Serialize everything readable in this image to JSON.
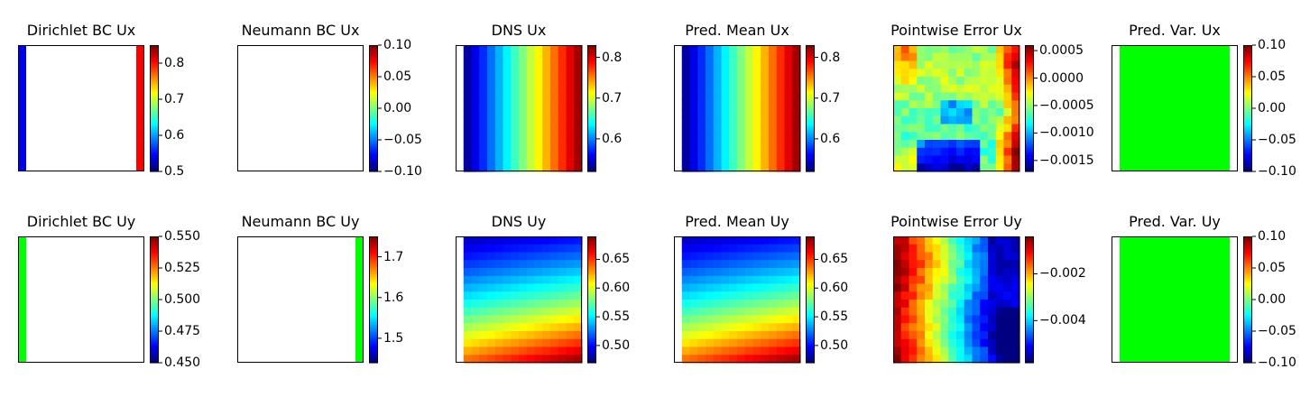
{
  "chart_data": [
    {
      "type": "heatmap",
      "title": "Dirichlet BC Ux",
      "pattern": "edges",
      "left_color": "#0000e8",
      "right_color": "#ff0000",
      "colorbar": {
        "ticks": [
          "0.5",
          "0.6",
          "0.7",
          "0.8"
        ],
        "tick_values": [
          0.5,
          0.6,
          0.7,
          0.8
        ],
        "range": [
          0.5,
          0.85
        ]
      }
    },
    {
      "type": "heatmap",
      "title": "Neumann BC Ux",
      "pattern": "blank",
      "colorbar": {
        "ticks": [
          "0.10",
          "0.05",
          "0.00",
          "−0.05",
          "−0.10"
        ],
        "tick_values": [
          0.1,
          0.05,
          0.0,
          -0.05,
          -0.1
        ],
        "range": [
          -0.1,
          0.1
        ]
      }
    },
    {
      "type": "heatmap",
      "title": "DNS Ux",
      "pattern": "gradx",
      "value_range": [
        0.52,
        0.83
      ],
      "colorbar": {
        "ticks": [
          "0.8",
          "0.7",
          "0.6"
        ],
        "tick_values": [
          0.8,
          0.7,
          0.6
        ],
        "range": [
          0.52,
          0.83
        ]
      }
    },
    {
      "type": "heatmap",
      "title": "Pred. Mean Ux",
      "pattern": "gradx",
      "value_range": [
        0.52,
        0.83
      ],
      "colorbar": {
        "ticks": [
          "0.8",
          "0.7",
          "0.6"
        ],
        "tick_values": [
          0.8,
          0.7,
          0.6
        ],
        "range": [
          0.52,
          0.83
        ]
      }
    },
    {
      "type": "heatmap",
      "title": "Pointwise Error Ux",
      "pattern": "errorux",
      "colorbar": {
        "ticks": [
          "0.0005",
          "0.0000",
          "−0.0005",
          "−0.0010",
          "−0.0015"
        ],
        "tick_values": [
          0.0005,
          0.0,
          -0.0005,
          -0.001,
          -0.0015
        ],
        "range": [
          -0.0017,
          0.0006
        ]
      }
    },
    {
      "type": "heatmap",
      "title": "Pred. Var. Ux",
      "pattern": "flat",
      "fill_color": "#00ff00",
      "colorbar": {
        "ticks": [
          "0.10",
          "0.05",
          "0.00",
          "−0.05",
          "−0.10"
        ],
        "tick_values": [
          0.1,
          0.05,
          0.0,
          -0.05,
          -0.1
        ],
        "range": [
          -0.1,
          0.1
        ]
      }
    },
    {
      "type": "heatmap",
      "title": "Dirichlet BC Uy",
      "pattern": "leftedge",
      "left_color": "#00ff00",
      "colorbar": {
        "ticks": [
          "0.550",
          "0.525",
          "0.500",
          "0.475",
          "0.450"
        ],
        "tick_values": [
          0.55,
          0.525,
          0.5,
          0.475,
          0.45
        ],
        "range": [
          0.45,
          0.55
        ]
      }
    },
    {
      "type": "heatmap",
      "title": "Neumann BC Uy",
      "pattern": "rightedge",
      "right_color": "#00ff00",
      "colorbar": {
        "ticks": [
          "1.7",
          "1.6",
          "1.5"
        ],
        "tick_values": [
          1.7,
          1.6,
          1.5
        ],
        "range": [
          1.44,
          1.75
        ]
      }
    },
    {
      "type": "heatmap",
      "title": "DNS Uy",
      "pattern": "diag",
      "value_range": [
        0.47,
        0.69
      ],
      "colorbar": {
        "ticks": [
          "0.65",
          "0.60",
          "0.55",
          "0.50"
        ],
        "tick_values": [
          0.65,
          0.6,
          0.55,
          0.5
        ],
        "range": [
          0.47,
          0.69
        ]
      }
    },
    {
      "type": "heatmap",
      "title": "Pred. Mean Uy",
      "pattern": "diag",
      "value_range": [
        0.47,
        0.69
      ],
      "colorbar": {
        "ticks": [
          "0.65",
          "0.60",
          "0.55",
          "0.50"
        ],
        "tick_values": [
          0.65,
          0.6,
          0.55,
          0.5
        ],
        "range": [
          0.47,
          0.69
        ]
      }
    },
    {
      "type": "heatmap",
      "title": "Pointwise Error Uy",
      "pattern": "erroruy",
      "colorbar": {
        "ticks": [
          "−0.002",
          "−0.004"
        ],
        "tick_values": [
          -0.002,
          -0.004
        ],
        "range": [
          -0.0058,
          -0.0004
        ]
      }
    },
    {
      "type": "heatmap",
      "title": "Pred. Var. Uy",
      "pattern": "flat",
      "fill_color": "#00ff00",
      "colorbar": {
        "ticks": [
          "0.10",
          "0.05",
          "0.00",
          "−0.05",
          "−0.10"
        ],
        "tick_values": [
          0.1,
          0.05,
          0.0,
          -0.05,
          -0.1
        ],
        "range": [
          -0.1,
          0.1
        ]
      }
    }
  ],
  "colormap": "jet"
}
